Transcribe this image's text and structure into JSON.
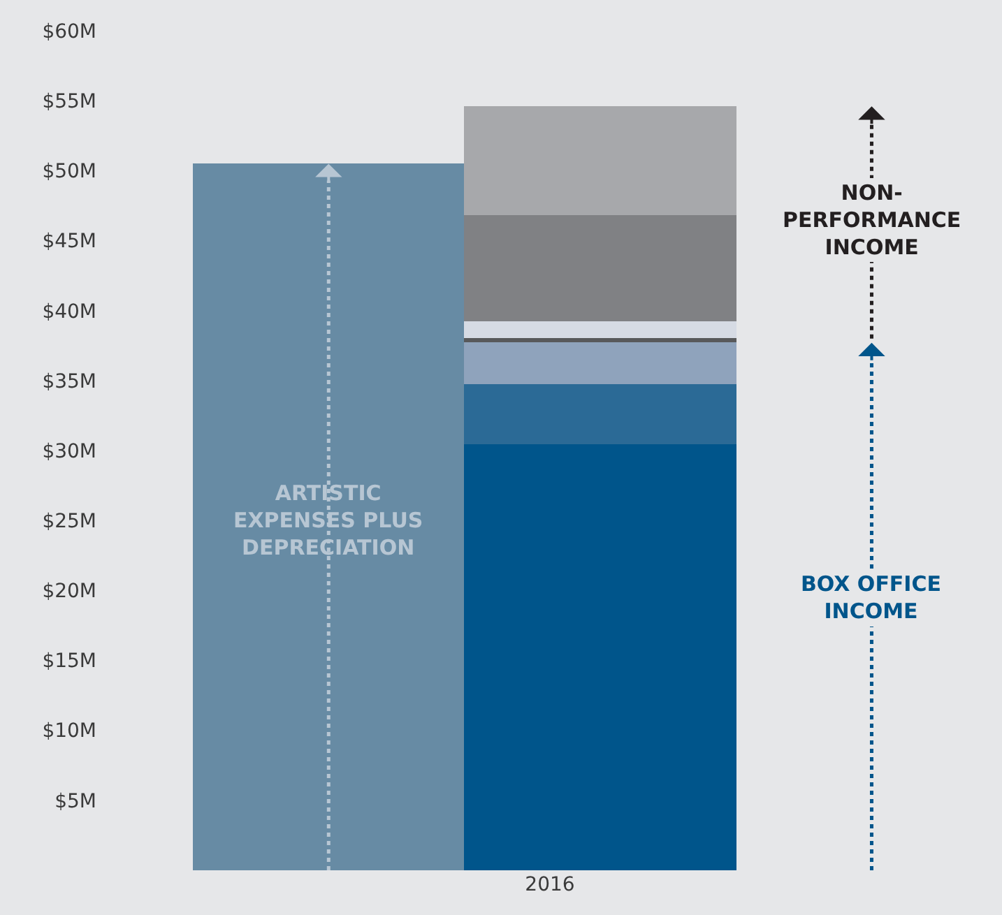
{
  "chart_data": {
    "type": "bar",
    "stacked": true,
    "categories": [
      null,
      null
    ],
    "xlabel": "2016",
    "series": [
      {
        "color": "#678ba4",
        "values": [
          50.5,
          null
        ]
      },
      {
        "color": "#00558b",
        "values": [
          null,
          30.5
        ]
      },
      {
        "color": "#2b6a96",
        "values": [
          null,
          4.2
        ]
      },
      {
        "color": "#8fa3bc",
        "values": [
          null,
          3.0
        ]
      },
      {
        "color": "#58595b",
        "values": [
          null,
          0.3
        ]
      },
      {
        "color": "#d6dbe4",
        "values": [
          null,
          1.2
        ]
      },
      {
        "color": "#808184",
        "values": [
          null,
          7.6
        ]
      },
      {
        "color": "#a7a8ab",
        "values": [
          null,
          7.8
        ]
      }
    ],
    "ylim": [
      0,
      62
    ],
    "yticks": [
      {
        "value": 5,
        "label": "$5M"
      },
      {
        "value": 10,
        "label": "$10M"
      },
      {
        "value": 15,
        "label": "$15M"
      },
      {
        "value": 20,
        "label": "$20M"
      },
      {
        "value": 25,
        "label": "$25M"
      },
      {
        "value": 30,
        "label": "$30M"
      },
      {
        "value": 35,
        "label": "$35M"
      },
      {
        "value": 40,
        "label": "$40M"
      },
      {
        "value": 45,
        "label": "$45M"
      },
      {
        "value": 50,
        "label": "$50M"
      },
      {
        "value": 55,
        "label": "$55M"
      },
      {
        "value": 60,
        "label": "$60M"
      }
    ],
    "tick_labels": "y",
    "grid": false,
    "annotations": [
      "ARTISTIC EXPENSES PLUS DEPRECIATION",
      "NON-PERFORMANCE INCOME",
      "BOX OFFICE INCOME"
    ]
  }
}
